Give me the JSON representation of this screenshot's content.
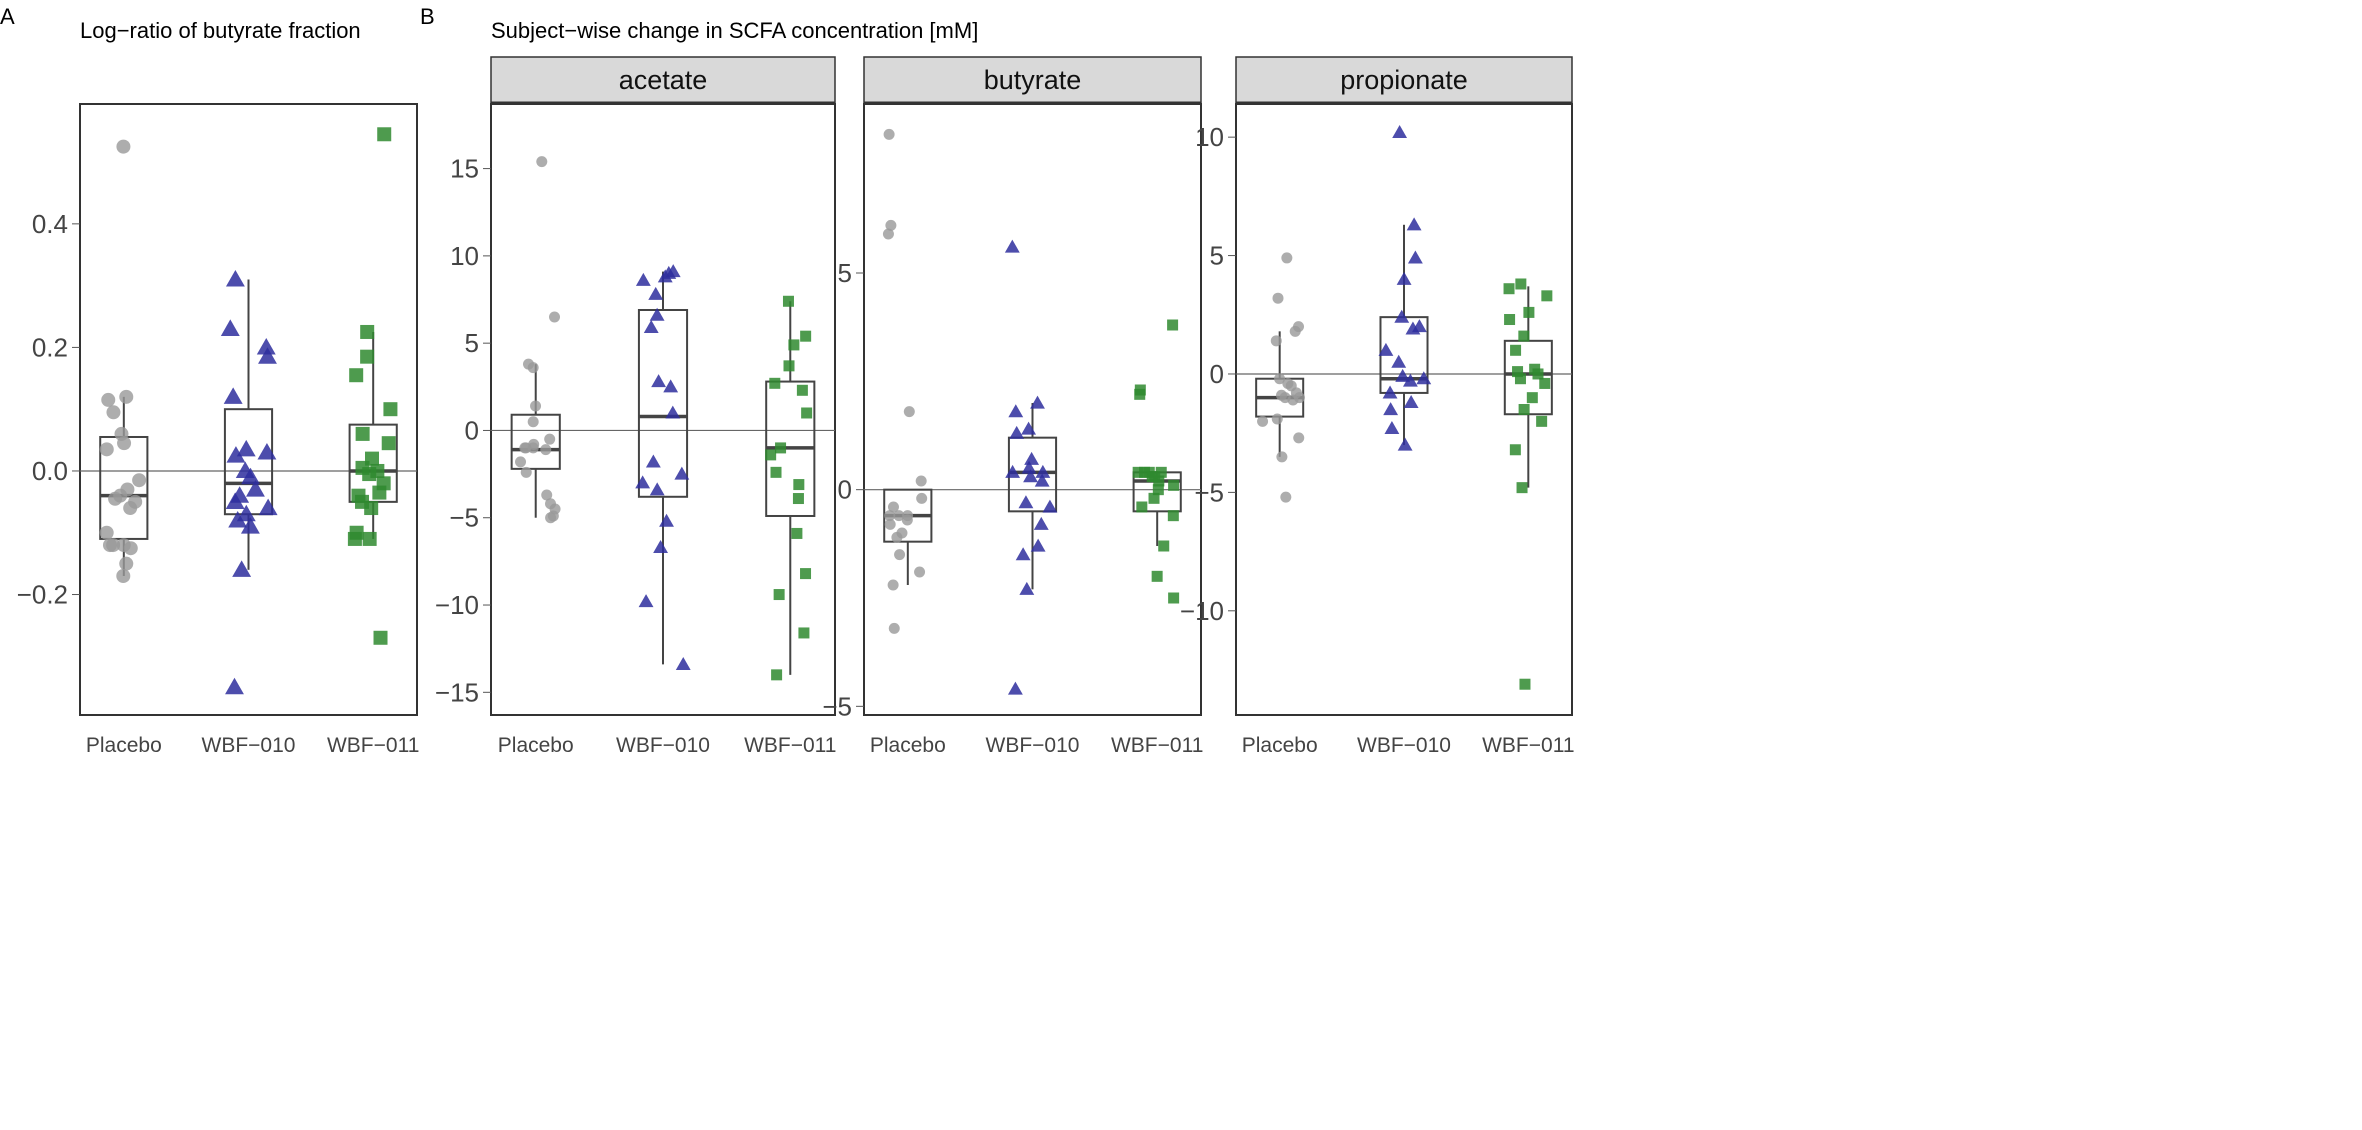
{
  "colors": {
    "Placebo": "#999999",
    "WBF-010": "#2e2e9e",
    "WBF-011": "#2f8a2f",
    "strip_bg": "#d9d9d9",
    "frame": "#333333"
  },
  "shapes": {
    "Placebo": "circle",
    "WBF-010": "triangle",
    "WBF-011": "square"
  },
  "chart_data": [
    {
      "panel_label": "A",
      "type": "box+strip",
      "title": "Log−ratio of butyrate fraction",
      "categories": [
        "Placebo",
        "WBF−010",
        "WBF−011"
      ],
      "yticks": [
        0.4,
        0.2,
        0.0,
        -0.2
      ],
      "ytick_labels": [
        "0.4",
        "0.2",
        "0.0",
        "−0.2"
      ],
      "ylim": [
        -0.395,
        0.594
      ],
      "hline": 0,
      "groups": [
        {
          "name": "Placebo",
          "points": [
            0.525,
            0.12,
            0.115,
            0.095,
            0.06,
            0.045,
            0.035,
            -0.015,
            -0.03,
            -0.04,
            -0.045,
            -0.05,
            -0.06,
            -0.1,
            -0.12,
            -0.12,
            -0.125,
            -0.12,
            -0.15,
            -0.17
          ],
          "box": {
            "lower": -0.17,
            "q1": -0.11,
            "median": -0.04,
            "q3": 0.055,
            "upper": 0.12
          }
        },
        {
          "name": "WBF-010",
          "points": [
            0.31,
            0.23,
            0.2,
            0.185,
            0.12,
            0.035,
            0.03,
            0.025,
            0.0,
            -0.01,
            -0.03,
            -0.04,
            -0.05,
            -0.06,
            -0.07,
            -0.08,
            -0.09,
            -0.16,
            -0.35
          ],
          "box": {
            "lower": -0.16,
            "q1": -0.07,
            "median": -0.02,
            "q3": 0.1,
            "upper": 0.31
          }
        },
        {
          "name": "WBF-011",
          "points": [
            0.545,
            0.225,
            0.185,
            0.155,
            0.1,
            0.06,
            0.045,
            0.02,
            0.005,
            0.0,
            -0.005,
            -0.02,
            -0.035,
            -0.04,
            -0.05,
            -0.06,
            -0.1,
            -0.11,
            -0.11,
            -0.27
          ],
          "box": {
            "lower": -0.11,
            "q1": -0.05,
            "median": 0.0,
            "q3": 0.075,
            "upper": 0.225
          }
        }
      ]
    },
    {
      "panel_label": "B",
      "type": "box+strip",
      "title": "Subject−wise change in SCFA concentration [mM]",
      "strip": "acetate",
      "categories": [
        "Placebo",
        "WBF−010",
        "WBF−011"
      ],
      "yticks": [
        15,
        10,
        5,
        0,
        -5,
        -10,
        -15
      ],
      "ytick_labels": [
        "15",
        "10",
        "5",
        "0",
        "−5",
        "−10",
        "−15"
      ],
      "ylim": [
        -16.3,
        18.7
      ],
      "hline": 0,
      "groups": [
        {
          "name": "Placebo",
          "points": [
            15.4,
            6.5,
            3.8,
            3.6,
            1.4,
            0.5,
            -0.5,
            -0.8,
            -1.0,
            -1.0,
            -1.0,
            -1.1,
            -1.8,
            -2.4,
            -3.7,
            -4.2,
            -4.5,
            -4.9,
            -5.0
          ],
          "box": {
            "lower": -5.0,
            "q1": -2.2,
            "median": -1.1,
            "q3": 0.9,
            "upper": 3.8
          }
        },
        {
          "name": "WBF-010",
          "points": [
            9.1,
            9.0,
            8.8,
            8.6,
            7.8,
            6.6,
            5.9,
            2.8,
            2.5,
            1.0,
            -1.8,
            -2.5,
            -3.0,
            -3.4,
            -5.2,
            -6.7,
            -9.8,
            -13.4
          ],
          "box": {
            "lower": -13.4,
            "q1": -3.8,
            "median": 0.8,
            "q3": 6.9,
            "upper": 9.1
          }
        },
        {
          "name": "WBF-011",
          "points": [
            7.4,
            5.4,
            4.9,
            3.7,
            2.7,
            2.3,
            1.0,
            -1.0,
            -1.4,
            -2.4,
            -3.1,
            -3.9,
            -5.9,
            -8.2,
            -9.4,
            -11.6,
            -14.0
          ],
          "box": {
            "lower": -14.0,
            "q1": -4.9,
            "median": -1.0,
            "q3": 2.8,
            "upper": 7.4
          }
        }
      ]
    },
    {
      "type": "box+strip",
      "strip": "butyrate",
      "categories": [
        "Placebo",
        "WBF−010",
        "WBF−011"
      ],
      "yticks": [
        5,
        0,
        -5
      ],
      "ytick_labels": [
        "5",
        "0",
        "−5"
      ],
      "ylim": [
        -5.2,
        8.9
      ],
      "hline": 0,
      "groups": [
        {
          "name": "Placebo",
          "points": [
            8.2,
            6.1,
            5.9,
            1.8,
            0.2,
            -0.2,
            -0.4,
            -0.6,
            -0.6,
            -0.6,
            -0.7,
            -0.8,
            -1.0,
            -1.1,
            -1.5,
            -1.9,
            -2.2,
            -3.2
          ],
          "box": {
            "lower": -2.2,
            "q1": -1.2,
            "median": -0.6,
            "q3": 0.0,
            "upper": 0.0
          }
        },
        {
          "name": "WBF-010",
          "points": [
            5.6,
            2.0,
            1.8,
            1.4,
            1.3,
            0.7,
            0.5,
            0.4,
            0.4,
            0.3,
            0.2,
            -0.3,
            -0.4,
            -0.8,
            -1.3,
            -1.5,
            -2.3,
            -4.6
          ],
          "box": {
            "lower": -2.3,
            "q1": -0.5,
            "median": 0.4,
            "q3": 1.2,
            "upper": 2.0
          }
        },
        {
          "name": "WBF-011",
          "points": [
            3.8,
            2.3,
            2.2,
            0.4,
            0.4,
            0.4,
            0.4,
            0.3,
            0.3,
            0.2,
            0.1,
            0.0,
            -0.2,
            -0.4,
            -0.6,
            -1.3,
            -2.0,
            -2.5
          ],
          "box": {
            "lower": -1.3,
            "q1": -0.5,
            "median": 0.2,
            "q3": 0.4,
            "upper": 0.4
          }
        }
      ]
    },
    {
      "type": "box+strip",
      "strip": "propionate",
      "categories": [
        "Placebo",
        "WBF−010",
        "WBF−011"
      ],
      "yticks": [
        10,
        5,
        0,
        -5,
        -10
      ],
      "ytick_labels": [
        "10",
        "5",
        "0",
        "−5",
        "−10"
      ],
      "ylim": [
        -14.4,
        11.4
      ],
      "hline": 0,
      "groups": [
        {
          "name": "Placebo",
          "points": [
            4.9,
            3.2,
            2.0,
            1.8,
            1.4,
            -0.2,
            -0.4,
            -0.5,
            -0.8,
            -0.9,
            -1.0,
            -1.0,
            -1.1,
            -1.9,
            -2.0,
            -2.7,
            -3.5,
            -5.2
          ],
          "box": {
            "lower": -3.5,
            "q1": -1.8,
            "median": -1.0,
            "q3": -0.2,
            "upper": 1.8
          }
        },
        {
          "name": "WBF-010",
          "points": [
            10.2,
            6.3,
            4.9,
            4.0,
            2.4,
            2.0,
            1.9,
            1.0,
            0.5,
            -0.1,
            -0.2,
            -0.3,
            -0.8,
            -1.2,
            -1.5,
            -2.3,
            -3.0
          ],
          "box": {
            "lower": -3.0,
            "q1": -0.8,
            "median": -0.2,
            "q3": 2.4,
            "upper": 6.3
          }
        },
        {
          "name": "WBF-011",
          "points": [
            3.8,
            3.6,
            3.3,
            2.6,
            2.3,
            1.6,
            1.0,
            0.2,
            0.1,
            0.0,
            -0.2,
            -0.4,
            -1.0,
            -1.5,
            -2.0,
            -3.2,
            -4.8,
            -13.1
          ],
          "box": {
            "lower": -4.8,
            "q1": -1.7,
            "median": 0.0,
            "q3": 1.4,
            "upper": 3.7
          }
        }
      ]
    }
  ]
}
